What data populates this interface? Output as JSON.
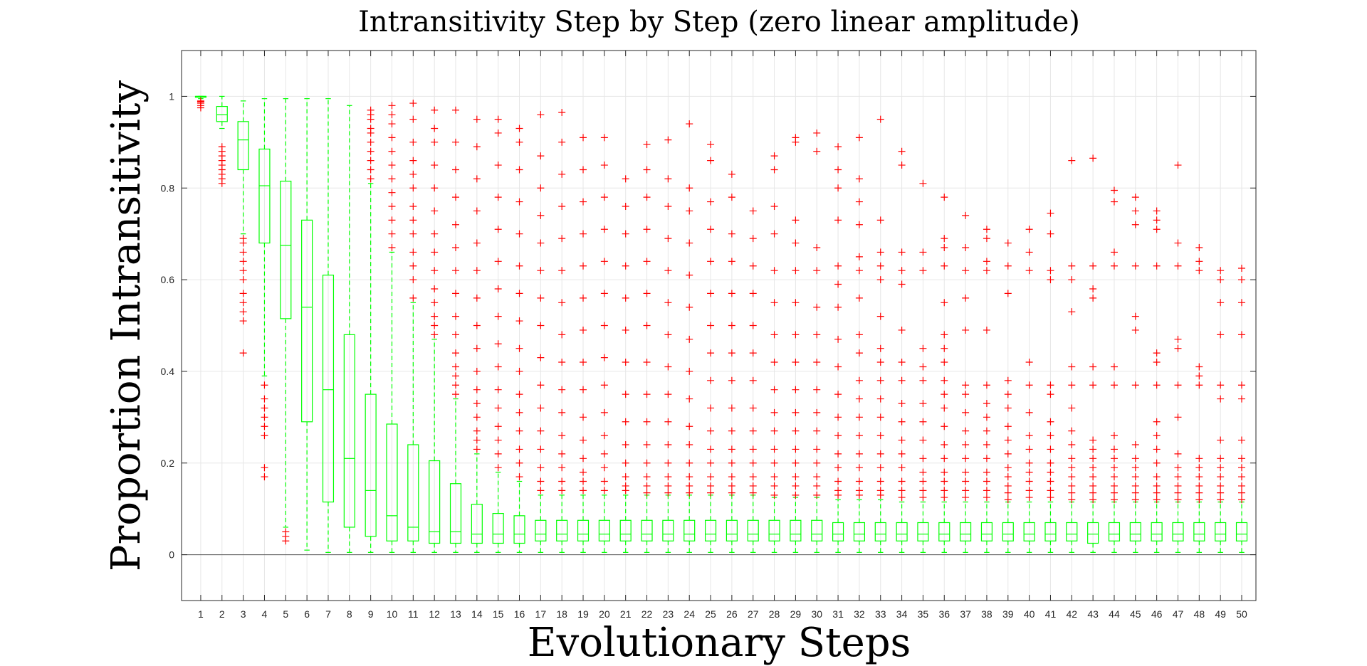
{
  "chart_data": {
    "type": "box",
    "title": "Intransitivity Step by Step (zero linear amplitude)",
    "xlabel": "Evolutionary Steps",
    "ylabel": "Proportion Intransitivity",
    "ylim": [
      -0.1,
      1.1
    ],
    "yticks": [
      "0",
      "0.2",
      "0.4",
      "0.6",
      "0.8",
      "1"
    ],
    "grid": true,
    "colors": {
      "box": "#00ff00",
      "outlier": "#ff0000",
      "grid": "#e6e6e6",
      "axis": "#262626"
    },
    "categories": [
      "1",
      "2",
      "3",
      "4",
      "5",
      "6",
      "7",
      "8",
      "9",
      "10",
      "11",
      "12",
      "13",
      "14",
      "15",
      "16",
      "17",
      "18",
      "19",
      "20",
      "21",
      "22",
      "23",
      "24",
      "25",
      "26",
      "27",
      "28",
      "29",
      "30",
      "31",
      "32",
      "33",
      "34",
      "35",
      "36",
      "37",
      "38",
      "39",
      "40",
      "41",
      "42",
      "43",
      "44",
      "45",
      "46",
      "47",
      "48",
      "49",
      "50"
    ],
    "boxes": [
      {
        "min": 0.995,
        "q1": 0.998,
        "median": 1.0,
        "q3": 1.0,
        "max": 1.0,
        "outliers": [
          0.975,
          0.98,
          0.985,
          0.988,
          0.99
        ]
      },
      {
        "min": 0.93,
        "q1": 0.945,
        "median": 0.96,
        "q3": 0.978,
        "max": 1.0,
        "outliers": [
          0.81,
          0.82,
          0.83,
          0.84,
          0.85,
          0.86,
          0.87,
          0.88,
          0.89
        ]
      },
      {
        "min": 0.7,
        "q1": 0.84,
        "median": 0.905,
        "q3": 0.945,
        "max": 0.99,
        "outliers": [
          0.44,
          0.51,
          0.53,
          0.55,
          0.57,
          0.6,
          0.62,
          0.64,
          0.66,
          0.68,
          0.69
        ]
      },
      {
        "min": 0.39,
        "q1": 0.68,
        "median": 0.805,
        "q3": 0.885,
        "max": 0.995,
        "outliers": [
          0.17,
          0.19,
          0.26,
          0.28,
          0.3,
          0.32,
          0.34,
          0.37
        ]
      },
      {
        "min": 0.06,
        "q1": 0.515,
        "median": 0.675,
        "q3": 0.815,
        "max": 0.995,
        "outliers": [
          0.03,
          0.04,
          0.05
        ]
      },
      {
        "min": 0.01,
        "q1": 0.29,
        "median": 0.54,
        "q3": 0.73,
        "max": 0.995,
        "outliers": []
      },
      {
        "min": 0.005,
        "q1": 0.115,
        "median": 0.36,
        "q3": 0.61,
        "max": 0.995,
        "outliers": []
      },
      {
        "min": 0.005,
        "q1": 0.06,
        "median": 0.21,
        "q3": 0.48,
        "max": 0.98,
        "outliers": []
      },
      {
        "min": 0.005,
        "q1": 0.04,
        "median": 0.14,
        "q3": 0.35,
        "max": 0.81,
        "outliers": [
          0.82,
          0.84,
          0.86,
          0.88,
          0.9,
          0.92,
          0.93,
          0.95,
          0.96,
          0.97
        ]
      },
      {
        "min": 0.005,
        "q1": 0.03,
        "median": 0.085,
        "q3": 0.285,
        "max": 0.66,
        "outliers": [
          0.67,
          0.7,
          0.73,
          0.76,
          0.79,
          0.82,
          0.85,
          0.88,
          0.91,
          0.94,
          0.96,
          0.98
        ]
      },
      {
        "min": 0.005,
        "q1": 0.03,
        "median": 0.06,
        "q3": 0.24,
        "max": 0.55,
        "outliers": [
          0.56,
          0.6,
          0.63,
          0.66,
          0.7,
          0.73,
          0.76,
          0.8,
          0.83,
          0.86,
          0.9,
          0.95,
          0.985
        ]
      },
      {
        "min": 0.005,
        "q1": 0.025,
        "median": 0.05,
        "q3": 0.205,
        "max": 0.47,
        "outliers": [
          0.48,
          0.5,
          0.52,
          0.55,
          0.58,
          0.62,
          0.66,
          0.7,
          0.75,
          0.8,
          0.85,
          0.9,
          0.93,
          0.97
        ]
      },
      {
        "min": 0.005,
        "q1": 0.025,
        "median": 0.05,
        "q3": 0.155,
        "max": 0.34,
        "outliers": [
          0.35,
          0.37,
          0.39,
          0.41,
          0.44,
          0.48,
          0.52,
          0.57,
          0.62,
          0.67,
          0.72,
          0.78,
          0.84,
          0.9,
          0.97
        ]
      },
      {
        "min": 0.005,
        "q1": 0.025,
        "median": 0.045,
        "q3": 0.11,
        "max": 0.22,
        "outliers": [
          0.23,
          0.25,
          0.27,
          0.3,
          0.33,
          0.36,
          0.4,
          0.45,
          0.5,
          0.56,
          0.62,
          0.68,
          0.75,
          0.82,
          0.89,
          0.95
        ]
      },
      {
        "min": 0.005,
        "q1": 0.025,
        "median": 0.045,
        "q3": 0.09,
        "max": 0.18,
        "outliers": [
          0.19,
          0.22,
          0.25,
          0.28,
          0.32,
          0.36,
          0.41,
          0.46,
          0.52,
          0.58,
          0.64,
          0.71,
          0.78,
          0.85,
          0.92,
          0.95
        ]
      },
      {
        "min": 0.005,
        "q1": 0.025,
        "median": 0.045,
        "q3": 0.085,
        "max": 0.16,
        "outliers": [
          0.17,
          0.2,
          0.23,
          0.27,
          0.31,
          0.35,
          0.4,
          0.45,
          0.51,
          0.57,
          0.63,
          0.7,
          0.77,
          0.84,
          0.9,
          0.93
        ]
      },
      {
        "min": 0.005,
        "q1": 0.03,
        "median": 0.045,
        "q3": 0.075,
        "max": 0.13,
        "outliers": [
          0.14,
          0.16,
          0.19,
          0.23,
          0.27,
          0.32,
          0.37,
          0.43,
          0.5,
          0.56,
          0.62,
          0.68,
          0.74,
          0.8,
          0.87,
          0.96
        ]
      },
      {
        "min": 0.005,
        "q1": 0.03,
        "median": 0.045,
        "q3": 0.075,
        "max": 0.13,
        "outliers": [
          0.14,
          0.16,
          0.19,
          0.22,
          0.26,
          0.31,
          0.36,
          0.42,
          0.48,
          0.55,
          0.62,
          0.69,
          0.76,
          0.83,
          0.9,
          0.965
        ]
      },
      {
        "min": 0.005,
        "q1": 0.03,
        "median": 0.045,
        "q3": 0.075,
        "max": 0.13,
        "outliers": [
          0.14,
          0.16,
          0.18,
          0.21,
          0.25,
          0.3,
          0.36,
          0.42,
          0.49,
          0.56,
          0.63,
          0.7,
          0.77,
          0.84,
          0.91
        ]
      },
      {
        "min": 0.005,
        "q1": 0.03,
        "median": 0.045,
        "q3": 0.075,
        "max": 0.13,
        "outliers": [
          0.14,
          0.16,
          0.19,
          0.22,
          0.26,
          0.31,
          0.37,
          0.43,
          0.5,
          0.57,
          0.64,
          0.71,
          0.78,
          0.85,
          0.91
        ]
      },
      {
        "min": 0.005,
        "q1": 0.03,
        "median": 0.045,
        "q3": 0.075,
        "max": 0.13,
        "outliers": [
          0.14,
          0.15,
          0.17,
          0.2,
          0.24,
          0.29,
          0.35,
          0.42,
          0.49,
          0.56,
          0.63,
          0.7,
          0.76,
          0.82
        ]
      },
      {
        "min": 0.005,
        "q1": 0.03,
        "median": 0.045,
        "q3": 0.075,
        "max": 0.13,
        "outliers": [
          0.135,
          0.15,
          0.17,
          0.2,
          0.24,
          0.29,
          0.35,
          0.42,
          0.5,
          0.57,
          0.64,
          0.71,
          0.78,
          0.84,
          0.895
        ]
      },
      {
        "min": 0.005,
        "q1": 0.03,
        "median": 0.045,
        "q3": 0.075,
        "max": 0.13,
        "outliers": [
          0.135,
          0.15,
          0.17,
          0.2,
          0.24,
          0.29,
          0.35,
          0.41,
          0.48,
          0.55,
          0.62,
          0.69,
          0.76,
          0.82,
          0.905
        ]
      },
      {
        "min": 0.005,
        "q1": 0.03,
        "median": 0.045,
        "q3": 0.075,
        "max": 0.13,
        "outliers": [
          0.135,
          0.15,
          0.17,
          0.2,
          0.24,
          0.28,
          0.34,
          0.4,
          0.47,
          0.54,
          0.61,
          0.68,
          0.75,
          0.8,
          0.94
        ]
      },
      {
        "min": 0.005,
        "q1": 0.03,
        "median": 0.045,
        "q3": 0.075,
        "max": 0.13,
        "outliers": [
          0.135,
          0.15,
          0.17,
          0.2,
          0.23,
          0.27,
          0.32,
          0.38,
          0.44,
          0.5,
          0.57,
          0.64,
          0.71,
          0.77,
          0.86,
          0.895
        ]
      },
      {
        "min": 0.005,
        "q1": 0.03,
        "median": 0.045,
        "q3": 0.075,
        "max": 0.13,
        "outliers": [
          0.135,
          0.15,
          0.17,
          0.2,
          0.23,
          0.27,
          0.32,
          0.38,
          0.44,
          0.5,
          0.57,
          0.64,
          0.7,
          0.78,
          0.83
        ]
      },
      {
        "min": 0.005,
        "q1": 0.03,
        "median": 0.045,
        "q3": 0.075,
        "max": 0.13,
        "outliers": [
          0.135,
          0.15,
          0.17,
          0.2,
          0.23,
          0.27,
          0.32,
          0.38,
          0.44,
          0.5,
          0.57,
          0.63,
          0.69,
          0.75
        ]
      },
      {
        "min": 0.005,
        "q1": 0.03,
        "median": 0.045,
        "q3": 0.075,
        "max": 0.125,
        "outliers": [
          0.13,
          0.15,
          0.17,
          0.2,
          0.23,
          0.27,
          0.31,
          0.36,
          0.42,
          0.48,
          0.55,
          0.62,
          0.7,
          0.76,
          0.84,
          0.87
        ]
      },
      {
        "min": 0.005,
        "q1": 0.03,
        "median": 0.045,
        "q3": 0.075,
        "max": 0.125,
        "outliers": [
          0.13,
          0.15,
          0.17,
          0.2,
          0.23,
          0.27,
          0.31,
          0.36,
          0.42,
          0.48,
          0.55,
          0.62,
          0.68,
          0.73,
          0.9,
          0.91
        ]
      },
      {
        "min": 0.005,
        "q1": 0.03,
        "median": 0.045,
        "q3": 0.075,
        "max": 0.125,
        "outliers": [
          0.13,
          0.15,
          0.17,
          0.2,
          0.23,
          0.27,
          0.31,
          0.36,
          0.42,
          0.48,
          0.54,
          0.62,
          0.67,
          0.88,
          0.92
        ]
      },
      {
        "min": 0.005,
        "q1": 0.03,
        "median": 0.045,
        "q3": 0.07,
        "max": 0.12,
        "outliers": [
          0.13,
          0.14,
          0.16,
          0.19,
          0.22,
          0.26,
          0.3,
          0.35,
          0.41,
          0.47,
          0.54,
          0.59,
          0.63,
          0.73,
          0.8,
          0.84,
          0.89
        ]
      },
      {
        "min": 0.005,
        "q1": 0.03,
        "median": 0.045,
        "q3": 0.07,
        "max": 0.12,
        "outliers": [
          0.13,
          0.14,
          0.16,
          0.19,
          0.22,
          0.26,
          0.3,
          0.34,
          0.38,
          0.44,
          0.48,
          0.56,
          0.62,
          0.65,
          0.72,
          0.77,
          0.82,
          0.91
        ]
      },
      {
        "min": 0.005,
        "q1": 0.03,
        "median": 0.045,
        "q3": 0.07,
        "max": 0.12,
        "outliers": [
          0.13,
          0.14,
          0.16,
          0.19,
          0.22,
          0.26,
          0.3,
          0.34,
          0.38,
          0.42,
          0.45,
          0.52,
          0.6,
          0.63,
          0.66,
          0.73,
          0.95
        ]
      },
      {
        "min": 0.005,
        "q1": 0.03,
        "median": 0.045,
        "q3": 0.07,
        "max": 0.115,
        "outliers": [
          0.125,
          0.14,
          0.16,
          0.19,
          0.22,
          0.25,
          0.29,
          0.33,
          0.38,
          0.42,
          0.49,
          0.59,
          0.62,
          0.66,
          0.85,
          0.88
        ]
      },
      {
        "min": 0.005,
        "q1": 0.03,
        "median": 0.045,
        "q3": 0.07,
        "max": 0.115,
        "outliers": [
          0.125,
          0.14,
          0.16,
          0.18,
          0.21,
          0.25,
          0.29,
          0.33,
          0.38,
          0.41,
          0.45,
          0.62,
          0.66,
          0.81
        ]
      },
      {
        "min": 0.005,
        "q1": 0.03,
        "median": 0.045,
        "q3": 0.07,
        "max": 0.115,
        "outliers": [
          0.125,
          0.14,
          0.16,
          0.18,
          0.21,
          0.24,
          0.28,
          0.32,
          0.35,
          0.38,
          0.42,
          0.45,
          0.48,
          0.55,
          0.63,
          0.67,
          0.69,
          0.78
        ]
      },
      {
        "min": 0.005,
        "q1": 0.03,
        "median": 0.045,
        "q3": 0.07,
        "max": 0.115,
        "outliers": [
          0.125,
          0.14,
          0.16,
          0.18,
          0.21,
          0.24,
          0.27,
          0.31,
          0.35,
          0.37,
          0.49,
          0.56,
          0.62,
          0.67,
          0.74
        ]
      },
      {
        "min": 0.005,
        "q1": 0.03,
        "median": 0.045,
        "q3": 0.07,
        "max": 0.115,
        "outliers": [
          0.125,
          0.14,
          0.16,
          0.18,
          0.21,
          0.24,
          0.27,
          0.3,
          0.33,
          0.37,
          0.49,
          0.62,
          0.64,
          0.69,
          0.71
        ]
      },
      {
        "min": 0.005,
        "q1": 0.03,
        "median": 0.045,
        "q3": 0.07,
        "max": 0.115,
        "outliers": [
          0.12,
          0.135,
          0.15,
          0.17,
          0.19,
          0.22,
          0.25,
          0.28,
          0.32,
          0.35,
          0.38,
          0.57,
          0.63,
          0.68
        ]
      },
      {
        "min": 0.005,
        "q1": 0.03,
        "median": 0.045,
        "q3": 0.07,
        "max": 0.115,
        "outliers": [
          0.125,
          0.14,
          0.16,
          0.18,
          0.2,
          0.23,
          0.26,
          0.31,
          0.37,
          0.42,
          0.62,
          0.66,
          0.71
        ]
      },
      {
        "min": 0.005,
        "q1": 0.03,
        "median": 0.045,
        "q3": 0.07,
        "max": 0.115,
        "outliers": [
          0.125,
          0.14,
          0.16,
          0.18,
          0.2,
          0.23,
          0.26,
          0.29,
          0.35,
          0.37,
          0.6,
          0.62,
          0.7,
          0.745
        ]
      },
      {
        "min": 0.005,
        "q1": 0.03,
        "median": 0.045,
        "q3": 0.07,
        "max": 0.115,
        "outliers": [
          0.12,
          0.135,
          0.15,
          0.17,
          0.19,
          0.21,
          0.24,
          0.27,
          0.32,
          0.37,
          0.41,
          0.53,
          0.6,
          0.63,
          0.86
        ]
      },
      {
        "min": 0.005,
        "q1": 0.025,
        "median": 0.045,
        "q3": 0.07,
        "max": 0.115,
        "outliers": [
          0.12,
          0.135,
          0.15,
          0.17,
          0.19,
          0.21,
          0.23,
          0.25,
          0.37,
          0.41,
          0.56,
          0.58,
          0.63,
          0.865
        ]
      },
      {
        "min": 0.005,
        "q1": 0.03,
        "median": 0.045,
        "q3": 0.07,
        "max": 0.115,
        "outliers": [
          0.12,
          0.135,
          0.15,
          0.17,
          0.19,
          0.21,
          0.23,
          0.26,
          0.37,
          0.41,
          0.63,
          0.66,
          0.77,
          0.795
        ]
      },
      {
        "min": 0.005,
        "q1": 0.03,
        "median": 0.045,
        "q3": 0.07,
        "max": 0.115,
        "outliers": [
          0.12,
          0.135,
          0.15,
          0.17,
          0.19,
          0.21,
          0.24,
          0.37,
          0.49,
          0.52,
          0.63,
          0.72,
          0.75,
          0.78
        ]
      },
      {
        "min": 0.005,
        "q1": 0.03,
        "median": 0.045,
        "q3": 0.07,
        "max": 0.115,
        "outliers": [
          0.12,
          0.135,
          0.15,
          0.17,
          0.2,
          0.23,
          0.26,
          0.29,
          0.37,
          0.42,
          0.44,
          0.63,
          0.71,
          0.73,
          0.75
        ]
      },
      {
        "min": 0.005,
        "q1": 0.03,
        "median": 0.045,
        "q3": 0.07,
        "max": 0.115,
        "outliers": [
          0.12,
          0.135,
          0.15,
          0.17,
          0.19,
          0.22,
          0.3,
          0.37,
          0.45,
          0.47,
          0.63,
          0.68,
          0.85
        ]
      },
      {
        "min": 0.005,
        "q1": 0.03,
        "median": 0.045,
        "q3": 0.07,
        "max": 0.115,
        "outliers": [
          0.12,
          0.135,
          0.15,
          0.17,
          0.19,
          0.21,
          0.37,
          0.39,
          0.41,
          0.62,
          0.64,
          0.67
        ]
      },
      {
        "min": 0.005,
        "q1": 0.03,
        "median": 0.045,
        "q3": 0.07,
        "max": 0.115,
        "outliers": [
          0.12,
          0.135,
          0.15,
          0.17,
          0.19,
          0.21,
          0.25,
          0.34,
          0.37,
          0.48,
          0.55,
          0.6,
          0.62
        ]
      },
      {
        "min": 0.005,
        "q1": 0.03,
        "median": 0.045,
        "q3": 0.07,
        "max": 0.115,
        "outliers": [
          0.12,
          0.135,
          0.15,
          0.17,
          0.19,
          0.21,
          0.25,
          0.34,
          0.37,
          0.48,
          0.55,
          0.6,
          0.625
        ]
      }
    ]
  }
}
